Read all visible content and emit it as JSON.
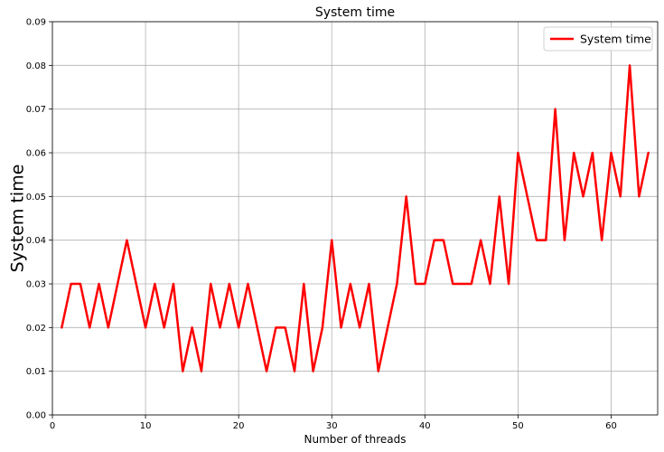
{
  "chart_data": {
    "type": "line",
    "title": "System time",
    "xlabel": "Number of threads",
    "ylabel": "System time",
    "xlim": [
      0,
      65
    ],
    "ylim": [
      0,
      0.09
    ],
    "xticks": [
      0,
      10,
      20,
      30,
      40,
      50,
      60
    ],
    "yticks": [
      0.0,
      0.01,
      0.02,
      0.03,
      0.04,
      0.05,
      0.06,
      0.07,
      0.08,
      0.09
    ],
    "xtick_labels": [
      "0",
      "10",
      "20",
      "30",
      "40",
      "50",
      "60"
    ],
    "ytick_labels": [
      "0.00",
      "0.01",
      "0.02",
      "0.03",
      "0.04",
      "0.05",
      "0.06",
      "0.07",
      "0.08",
      "0.09"
    ],
    "grid": true,
    "legend_position": "top-right",
    "series": [
      {
        "name": "System time",
        "color": "#ff0000",
        "x": [
          1,
          2,
          3,
          4,
          5,
          6,
          7,
          8,
          9,
          10,
          11,
          12,
          13,
          14,
          15,
          16,
          17,
          18,
          19,
          20,
          21,
          22,
          23,
          24,
          25,
          26,
          27,
          28,
          29,
          30,
          31,
          32,
          33,
          34,
          35,
          36,
          37,
          38,
          39,
          40,
          41,
          42,
          43,
          44,
          45,
          46,
          47,
          48,
          49,
          50,
          51,
          52,
          53,
          54,
          55,
          56,
          57,
          58,
          59,
          60,
          61,
          62,
          63,
          64
        ],
        "values": [
          0.02,
          0.03,
          0.03,
          0.02,
          0.03,
          0.02,
          0.03,
          0.04,
          0.03,
          0.02,
          0.03,
          0.02,
          0.03,
          0.01,
          0.02,
          0.01,
          0.03,
          0.02,
          0.03,
          0.02,
          0.03,
          0.02,
          0.01,
          0.02,
          0.02,
          0.01,
          0.03,
          0.01,
          0.02,
          0.04,
          0.02,
          0.03,
          0.02,
          0.03,
          0.01,
          0.02,
          0.03,
          0.05,
          0.03,
          0.03,
          0.04,
          0.04,
          0.03,
          0.03,
          0.03,
          0.04,
          0.03,
          0.05,
          0.03,
          0.06,
          0.05,
          0.04,
          0.04,
          0.07,
          0.04,
          0.06,
          0.05,
          0.06,
          0.04,
          0.06,
          0.05,
          0.08,
          0.05,
          0.06
        ]
      }
    ]
  }
}
